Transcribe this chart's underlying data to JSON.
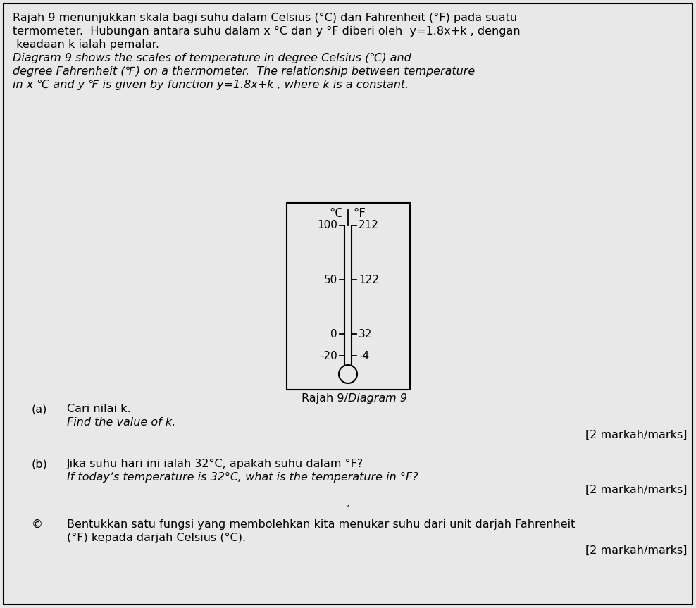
{
  "bg_color": "#e8e8e8",
  "inner_bg": "#e8e8e8",
  "border_color": "#000000",
  "text_color": "#000000",
  "title_line1": "Rajah 9 menunjukkan skala bagi suhu dalam Celsius (°C) dan Fahrenheit (°F) pada suatu",
  "title_line2": "termometer.  Hubungan antara suhu dalam x °C dan y °F diberi oleh  y=1.8x+k , dengan",
  "title_line3": " keadaan k ialah pemalar.",
  "italic_line1": "Diagram 9 shows the scales of temperature in degree Celsius (℃) and",
  "italic_line2": "degree Fahrenheit (℉) on a thermometer.  The relationship between temperature",
  "italic_line3": "in x ℃ and y ℉ is given by function y=1.8x+k , where k is a constant.",
  "celsius_label": "°C",
  "fahrenheit_label": "°F",
  "diagram_caption_normal": "Rajah 9/",
  "diagram_caption_italic": "Diagram 9",
  "labels_C": [
    "100",
    "50",
    "0",
    "-20"
  ],
  "labels_F": [
    "212",
    "122",
    "32",
    "-4"
  ],
  "part_a_label": "(a)",
  "part_a_text1": "Cari nilai k.",
  "part_a_text2": "Find the value of k.",
  "part_a_marks": "[2 markah/marks]",
  "part_b_label": "(b)",
  "part_b_text1": "Jika suhu hari ini ialah 32°C, apakah suhu dalam °F?",
  "part_b_text2": "If today’s temperature is 32°C, what is the temperature in °F?",
  "part_b_marks": "[2 markah/marks]",
  "part_c_label": "©",
  "part_c_text1": "Bentukkan satu fungsi yang membolehkan kita menukar suhu dari unit darjah Fahrenheit",
  "part_c_text2": "(°F) kepada darjah Celsius (°C).",
  "part_c_marks": "[2 markah/marks]",
  "small_mark": "‘"
}
